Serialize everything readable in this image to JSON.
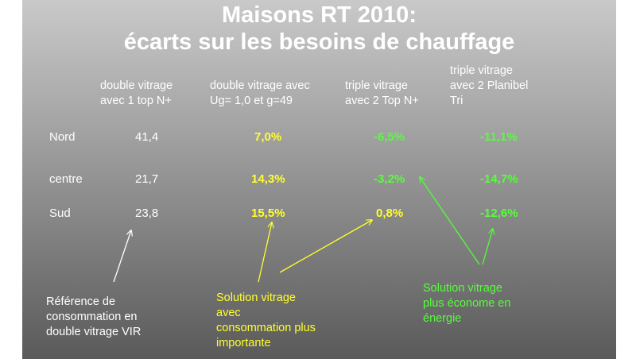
{
  "title": {
    "line1": "Maisons RT 2010:",
    "line2": "écarts sur les besoins de chauffage"
  },
  "columns": [
    "double vitrage\navec 1 top N+",
    "double vitrage avec\nUg= 1,0 et g=49",
    "triple vitrage\navec 2 Top N+",
    "triple vitrage\navec 2 Planibel\nTri"
  ],
  "rows": [
    {
      "label": "Nord",
      "values": [
        "41,4",
        "7,0%",
        "-6,5%",
        "-11,1%"
      ]
    },
    {
      "label": "centre",
      "values": [
        "21,7",
        "14,3%",
        "-3,2%",
        "-14,7%"
      ]
    },
    {
      "label": "Sud",
      "values": [
        "23,8",
        "15,5%",
        "0,8%",
        "-12,6%"
      ]
    }
  ],
  "notes": {
    "reference": [
      "Référence de",
      "consommation en",
      "double vitrage VIR"
    ],
    "higher": [
      "Solution vitrage",
      "avec",
      "consommation plus",
      "importante"
    ],
    "economic": [
      "Solution vitrage",
      "plus économe en",
      "énergie"
    ]
  },
  "colors": {
    "background_top": "#c9c9c9",
    "background_bottom": "#5a5a5a",
    "text": "#ffffff",
    "highlight_yellow": "#ffff2e",
    "highlight_green": "#55ff3a"
  }
}
